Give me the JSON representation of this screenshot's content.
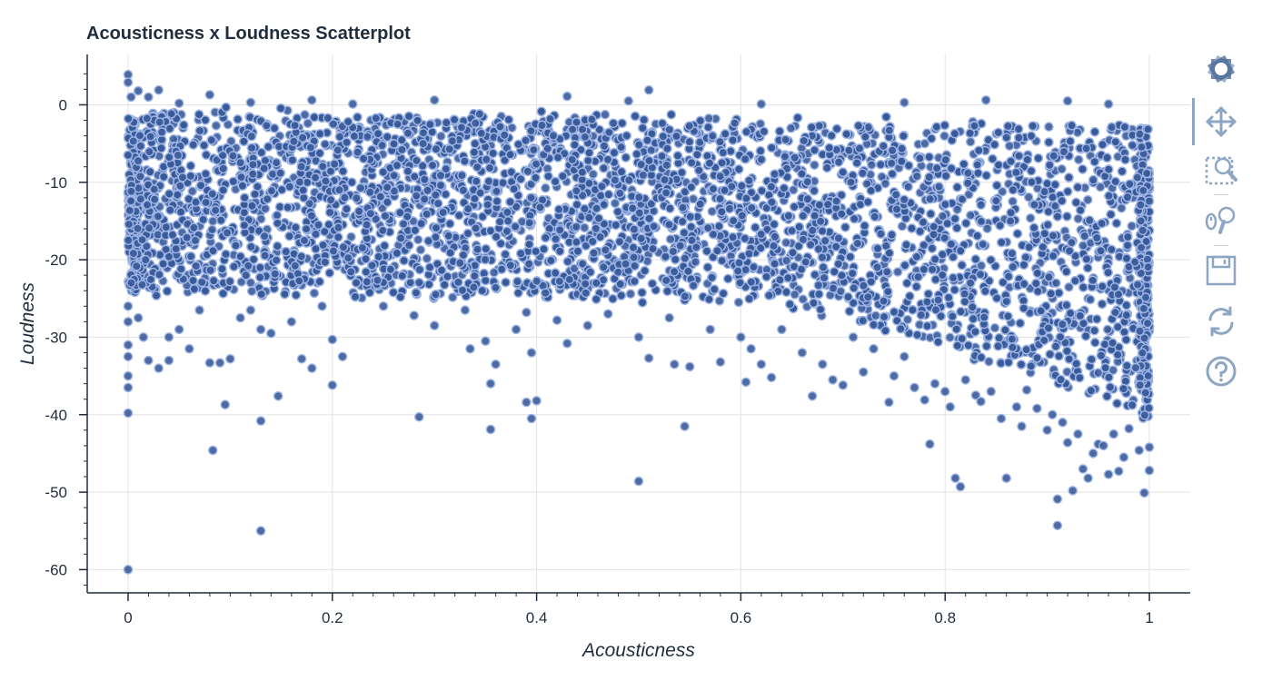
{
  "chart_data": {
    "type": "scatter",
    "title": "Acousticness x Loudness Scatterplot",
    "xlabel": "Acousticness",
    "ylabel": "Loudness",
    "xlim": [
      -0.04,
      1.04
    ],
    "ylim": [
      -63,
      6.5
    ],
    "x_ticks": [
      0,
      0.2,
      0.4,
      0.6,
      0.8,
      1
    ],
    "x_tick_labels": [
      "0",
      "0.2",
      "0.4",
      "0.6",
      "0.8",
      "1"
    ],
    "y_ticks": [
      0,
      -10,
      -20,
      -30,
      -40,
      -50,
      -60
    ],
    "y_tick_labels": [
      "0",
      "-10",
      "-20",
      "-30",
      "-40",
      "-50",
      "-60"
    ],
    "grid": true,
    "marker_fill": "#3a5a99",
    "marker_edge": "#9fb6e6",
    "dense_band": {
      "description_free": true,
      "x_range": [
        0,
        1
      ],
      "upper_loudness_at_x0": -1,
      "upper_loudness_at_x1": -3,
      "lower_loudness_at_x0": -24,
      "lower_loudness_at_x0_6": -25,
      "lower_loudness_at_x1": -40
    },
    "points": [
      [
        0.0,
        3.9
      ],
      [
        0.0,
        2.9
      ],
      [
        0.003,
        1.0
      ],
      [
        0.01,
        1.8
      ],
      [
        0.02,
        1.0
      ],
      [
        0.03,
        1.9
      ],
      [
        0.05,
        0.2
      ],
      [
        0.08,
        1.3
      ],
      [
        0.12,
        0.3
      ],
      [
        0.18,
        0.6
      ],
      [
        0.22,
        0.1
      ],
      [
        0.3,
        0.6
      ],
      [
        0.43,
        1.1
      ],
      [
        0.49,
        0.5
      ],
      [
        0.51,
        1.9
      ],
      [
        0.62,
        0.1
      ],
      [
        0.76,
        0.3
      ],
      [
        0.84,
        0.6
      ],
      [
        0.92,
        0.5
      ],
      [
        0.96,
        0.1
      ],
      [
        0.0,
        -26
      ],
      [
        0.0,
        -28
      ],
      [
        0.0,
        -31
      ],
      [
        0.0,
        -32.5
      ],
      [
        0.0,
        -35
      ],
      [
        0.0,
        -36.5
      ],
      [
        0.0,
        -39.8
      ],
      [
        0.0,
        -60
      ],
      [
        0.01,
        -27.5
      ],
      [
        0.015,
        -30
      ],
      [
        0.02,
        -33
      ],
      [
        0.03,
        -34
      ],
      [
        0.04,
        -30
      ],
      [
        0.04,
        -33
      ],
      [
        0.05,
        -29
      ],
      [
        0.06,
        -31.5
      ],
      [
        0.07,
        -26.5
      ],
      [
        0.08,
        -33.3
      ],
      [
        0.083,
        -44.6
      ],
      [
        0.09,
        -33.3
      ],
      [
        0.095,
        -38.7
      ],
      [
        0.1,
        -32.8
      ],
      [
        0.11,
        -27.5
      ],
      [
        0.12,
        -26.5
      ],
      [
        0.13,
        -29
      ],
      [
        0.13,
        -40.8
      ],
      [
        0.13,
        -55
      ],
      [
        0.14,
        -29.5
      ],
      [
        0.147,
        -37.6
      ],
      [
        0.16,
        -28
      ],
      [
        0.17,
        -32.8
      ],
      [
        0.18,
        -34
      ],
      [
        0.19,
        -26
      ],
      [
        0.2,
        -30.3
      ],
      [
        0.2,
        -36.2
      ],
      [
        0.21,
        -32.5
      ],
      [
        0.25,
        -26
      ],
      [
        0.28,
        -27.2
      ],
      [
        0.285,
        -40.3
      ],
      [
        0.3,
        -28.5
      ],
      [
        0.33,
        -26.5
      ],
      [
        0.335,
        -31.5
      ],
      [
        0.35,
        -30.5
      ],
      [
        0.355,
        -36
      ],
      [
        0.355,
        -41.9
      ],
      [
        0.36,
        -33.5
      ],
      [
        0.38,
        -29
      ],
      [
        0.39,
        -26.8
      ],
      [
        0.39,
        -38.4
      ],
      [
        0.395,
        -32
      ],
      [
        0.395,
        -40.5
      ],
      [
        0.4,
        -38.2
      ],
      [
        0.42,
        -27.8
      ],
      [
        0.43,
        -30.8
      ],
      [
        0.45,
        -28.5
      ],
      [
        0.47,
        -27
      ],
      [
        0.5,
        -30
      ],
      [
        0.5,
        -48.6
      ],
      [
        0.51,
        -32.7
      ],
      [
        0.53,
        -27.5
      ],
      [
        0.535,
        -33.5
      ],
      [
        0.545,
        -41.5
      ],
      [
        0.55,
        -33.8
      ],
      [
        0.57,
        -29
      ],
      [
        0.58,
        -33.2
      ],
      [
        0.6,
        -30
      ],
      [
        0.605,
        -35.8
      ],
      [
        0.61,
        -31.5
      ],
      [
        0.62,
        -33.5
      ],
      [
        0.63,
        -35.2
      ],
      [
        0.64,
        -29
      ],
      [
        0.66,
        -32
      ],
      [
        0.67,
        -37.6
      ],
      [
        0.68,
        -33.5
      ],
      [
        0.69,
        -35.5
      ],
      [
        0.7,
        -36.2
      ],
      [
        0.71,
        -30
      ],
      [
        0.72,
        -34.5
      ],
      [
        0.73,
        -31.5
      ],
      [
        0.745,
        -38.4
      ],
      [
        0.75,
        -35
      ],
      [
        0.76,
        -32.5
      ],
      [
        0.77,
        -36.5
      ],
      [
        0.78,
        -38.1
      ],
      [
        0.785,
        -43.8
      ],
      [
        0.79,
        -36
      ],
      [
        0.8,
        -37
      ],
      [
        0.805,
        -39
      ],
      [
        0.81,
        -48.2
      ],
      [
        0.815,
        -49.3
      ],
      [
        0.82,
        -35.5
      ],
      [
        0.83,
        -37.5
      ],
      [
        0.835,
        -38.3
      ],
      [
        0.845,
        -37
      ],
      [
        0.855,
        -40.5
      ],
      [
        0.86,
        -48.2
      ],
      [
        0.87,
        -39
      ],
      [
        0.875,
        -41.5
      ],
      [
        0.88,
        -36.8
      ],
      [
        0.89,
        -39.2
      ],
      [
        0.9,
        -42
      ],
      [
        0.905,
        -40
      ],
      [
        0.91,
        -50.9
      ],
      [
        0.91,
        -54.3
      ],
      [
        0.915,
        -41
      ],
      [
        0.92,
        -43.6
      ],
      [
        0.925,
        -49.8
      ],
      [
        0.93,
        -42.5
      ],
      [
        0.935,
        -47
      ],
      [
        0.94,
        -48.2
      ],
      [
        0.945,
        -45
      ],
      [
        0.95,
        -43.8
      ],
      [
        0.955,
        -44
      ],
      [
        0.96,
        -47.7
      ],
      [
        0.965,
        -42.5
      ],
      [
        0.97,
        -47.3
      ],
      [
        0.975,
        -45.5
      ],
      [
        0.98,
        -41.8
      ],
      [
        0.99,
        -44.6
      ],
      [
        0.995,
        -50.1
      ],
      [
        1.0,
        -47.2
      ],
      [
        1.0,
        -44.2
      ]
    ]
  },
  "toolbar": {
    "tools": [
      "bokeh-logo-icon",
      "pan-icon",
      "box-zoom-icon",
      "wheel-zoom-icon",
      "save-icon",
      "reset-icon",
      "help-icon"
    ],
    "icon_color": "#8da6c4",
    "active_tool": "pan-icon"
  }
}
